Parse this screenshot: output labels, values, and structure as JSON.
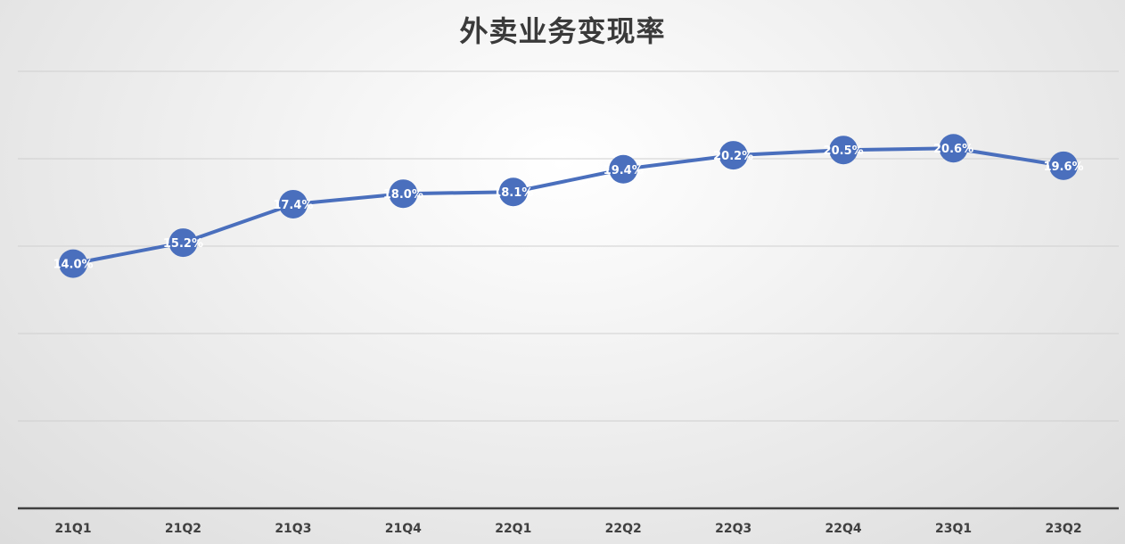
{
  "chart_data": {
    "type": "line",
    "title": "外卖业务变现率",
    "xlabel": "",
    "ylabel": "",
    "categories": [
      "21Q1",
      "21Q2",
      "21Q3",
      "21Q4",
      "22Q1",
      "22Q2",
      "22Q3",
      "22Q4",
      "23Q1",
      "23Q2"
    ],
    "series": [
      {
        "values": [
          14.0,
          15.2,
          17.4,
          18.0,
          18.1,
          19.4,
          20.2,
          20.5,
          20.6,
          19.6
        ],
        "data_labels": [
          "14.0%",
          "15.2%",
          "17.4%",
          "18.0%",
          "18.1%",
          "19.4%",
          "20.2%",
          "20.5%",
          "20.6%",
          "19.6%"
        ],
        "color": "#4a6fbd"
      }
    ],
    "ylim": [
      0,
      25
    ],
    "grid": true,
    "gridline_values": [
      5,
      10,
      15,
      20,
      25
    ],
    "y_tick_labels_shown": false,
    "legend": "none"
  },
  "colors": {
    "line": "#4a6fbd",
    "marker": "#4a6fbd",
    "data_label_text": "#ffffff"
  }
}
